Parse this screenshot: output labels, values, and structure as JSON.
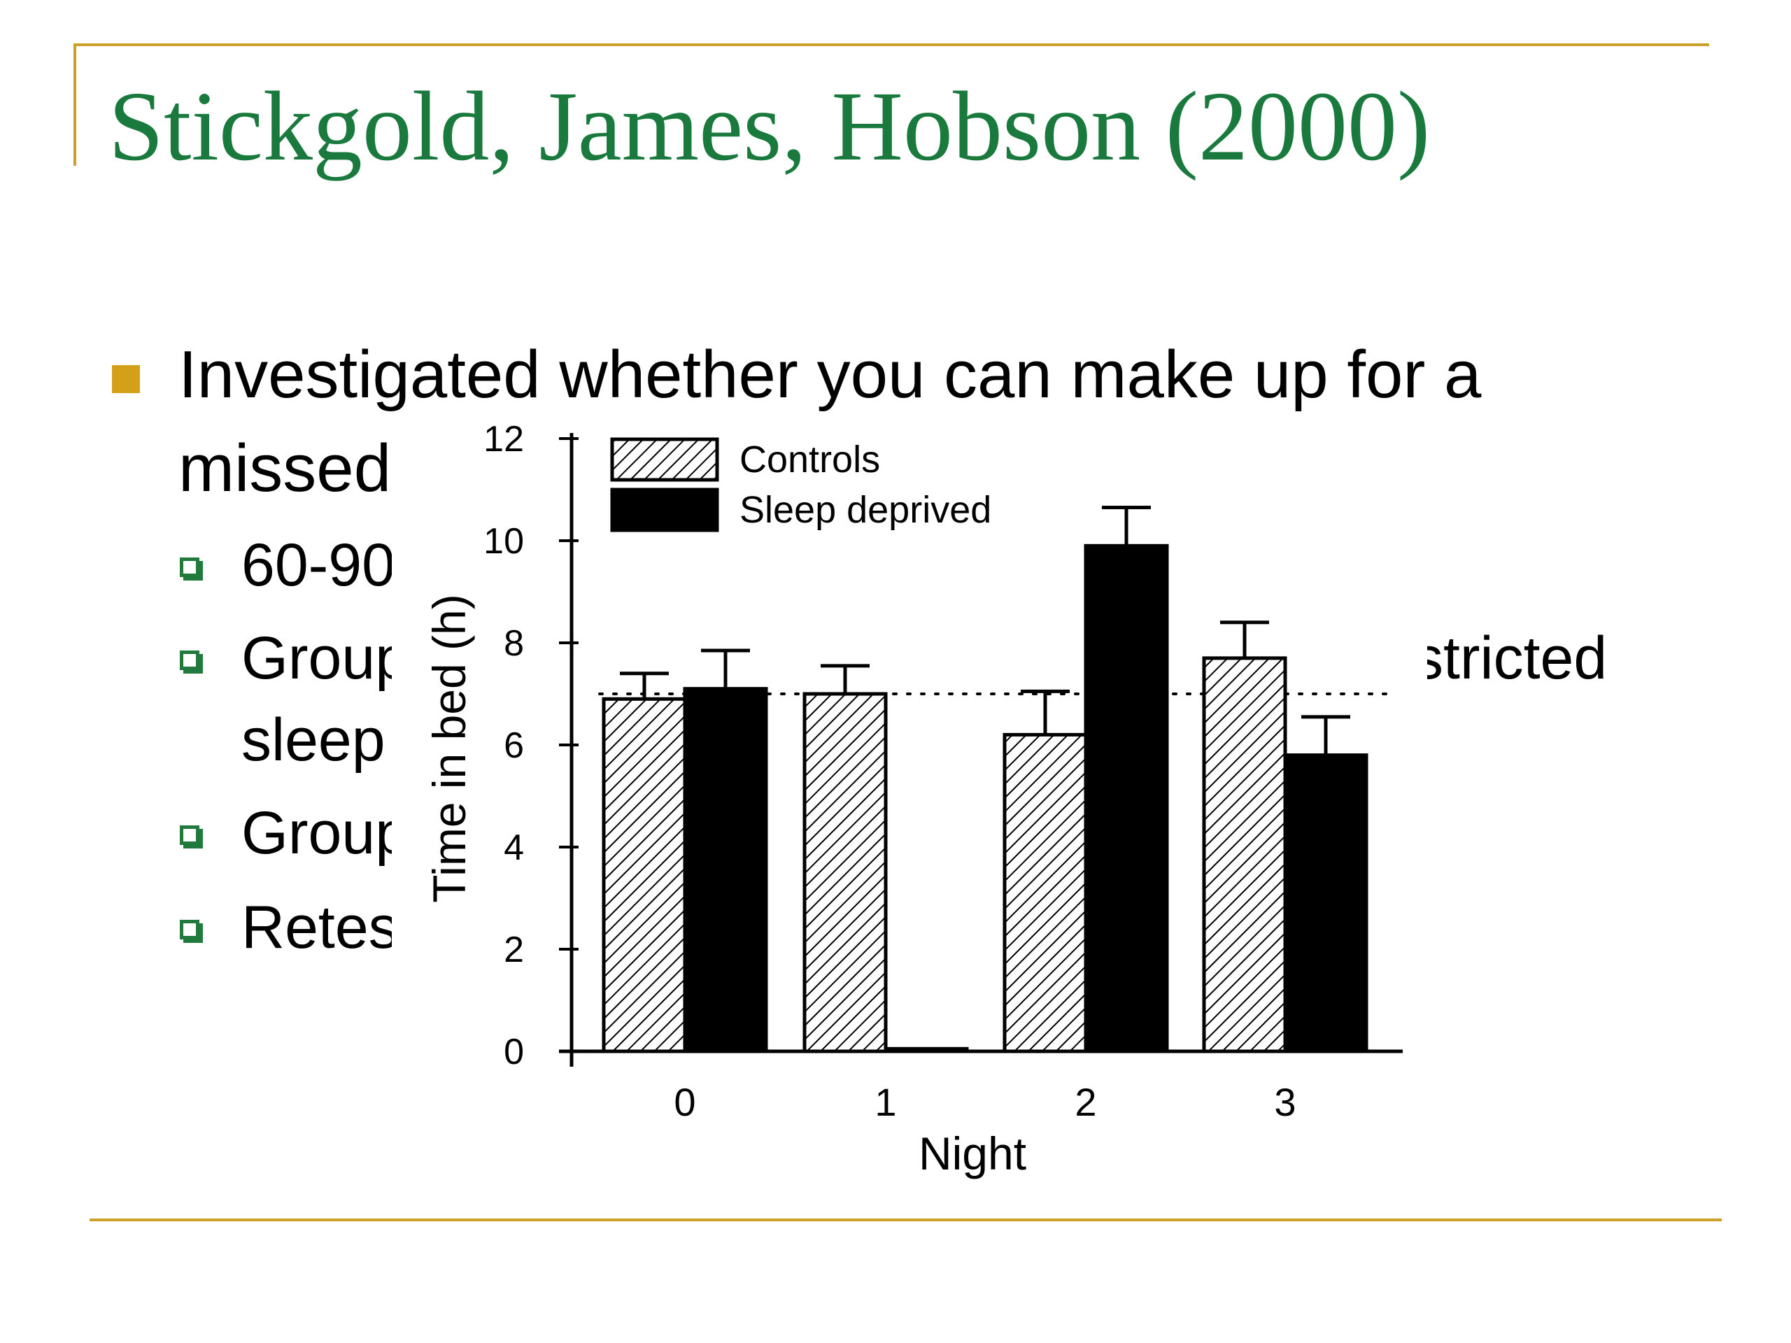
{
  "slide": {
    "title": "Stickgold, James, Hobson (2000)",
    "bullet_line1": "Investigated whether you can make up for a",
    "bullet_line2": "missed",
    "sub1": "60-90",
    "sub2_line1": "Group",
    "sub2_line2": "sleep",
    "sub2_right": "stricted",
    "sub3": "Group",
    "sub4": "Retes",
    "colors": {
      "title": "#1a7a3e",
      "rule": "#c9a227",
      "bullet": "#d4a017",
      "sub_bullet": "#1f7a3c"
    }
  },
  "chart_data": {
    "type": "bar",
    "xlabel": "Night",
    "ylabel": "Time in bed (h)",
    "categories": [
      "0",
      "1",
      "2",
      "3"
    ],
    "ylim": [
      0,
      12
    ],
    "yticks": [
      "0",
      "2",
      "4",
      "6",
      "8",
      "10",
      "12"
    ],
    "reference_line": 7.0,
    "legend_position": "top-left",
    "series": [
      {
        "name": "Controls",
        "pattern": "hatched",
        "values": [
          6.9,
          7.0,
          6.2,
          7.7
        ],
        "errors": [
          0.5,
          0.55,
          0.85,
          0.7
        ]
      },
      {
        "name": "Sleep deprived",
        "pattern": "solid",
        "values": [
          7.1,
          0.05,
          9.9,
          5.8
        ],
        "errors": [
          0.75,
          0,
          0.75,
          0.75
        ]
      }
    ]
  }
}
